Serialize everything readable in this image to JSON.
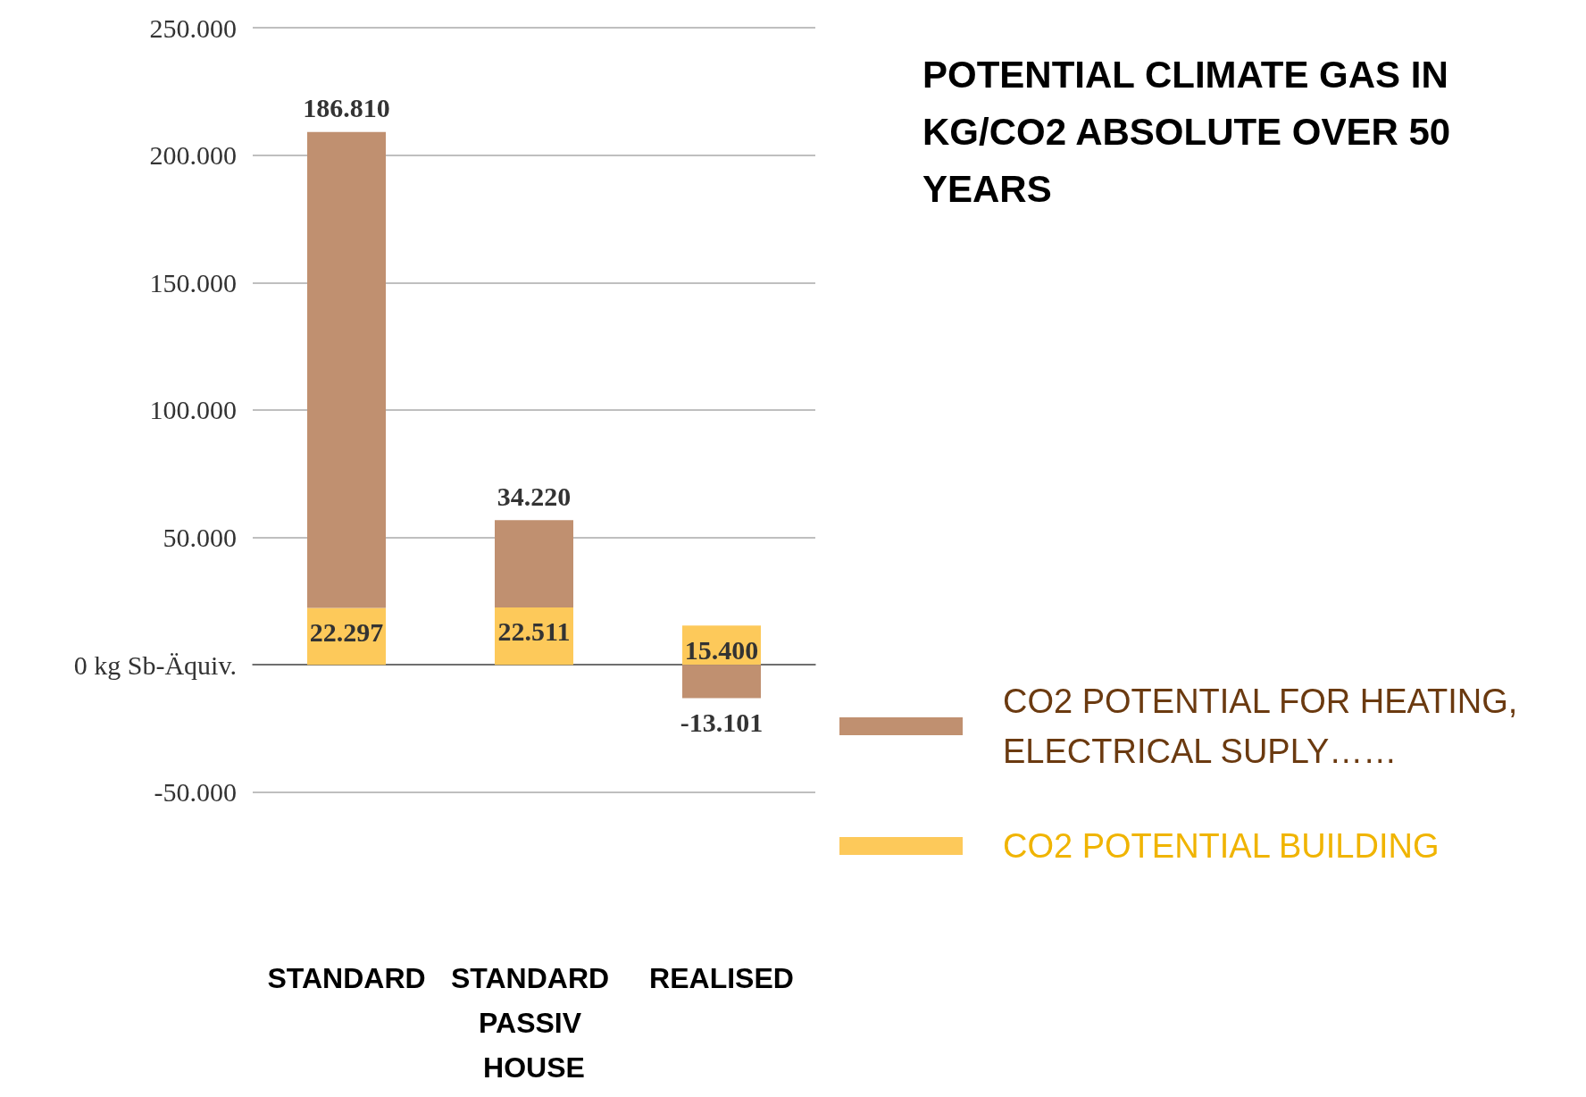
{
  "chart_data": {
    "type": "bar",
    "title": "POTENTIAL CLIMATE GAS IN KG/CO2 ABSOLUTE OVER 50 YEARS",
    "categories": [
      "STANDARD",
      "STANDARD PASSIV HOUSE",
      "REALISED"
    ],
    "stacked": true,
    "series": [
      {
        "name": "CO2 POTENTIAL BUILDING",
        "color": "#fdc95a",
        "values": [
          22297,
          22511,
          15400
        ],
        "value_labels": [
          "22.297",
          "22.511",
          "15.400"
        ]
      },
      {
        "name": "CO2 POTENTIAL FOR HEATING, ELECTRICAL SUPLY……",
        "color": "#c09070",
        "values": [
          186810,
          34220,
          -13101
        ],
        "value_labels": [
          "186.810",
          "34.220",
          "-13.101"
        ]
      }
    ],
    "ylim": [
      -50000,
      250000
    ],
    "yticks": [
      {
        "value": -50000,
        "label": "-50.000"
      },
      {
        "value": 0,
        "label": "0 kg Sb-Äquiv."
      },
      {
        "value": 50000,
        "label": "50.000"
      },
      {
        "value": 100000,
        "label": "100.000"
      },
      {
        "value": 150000,
        "label": "150.000"
      },
      {
        "value": 200000,
        "label": "200.000"
      },
      {
        "value": 250000,
        "label": "250.000"
      }
    ],
    "grid": "y",
    "legend": "bottom right"
  }
}
